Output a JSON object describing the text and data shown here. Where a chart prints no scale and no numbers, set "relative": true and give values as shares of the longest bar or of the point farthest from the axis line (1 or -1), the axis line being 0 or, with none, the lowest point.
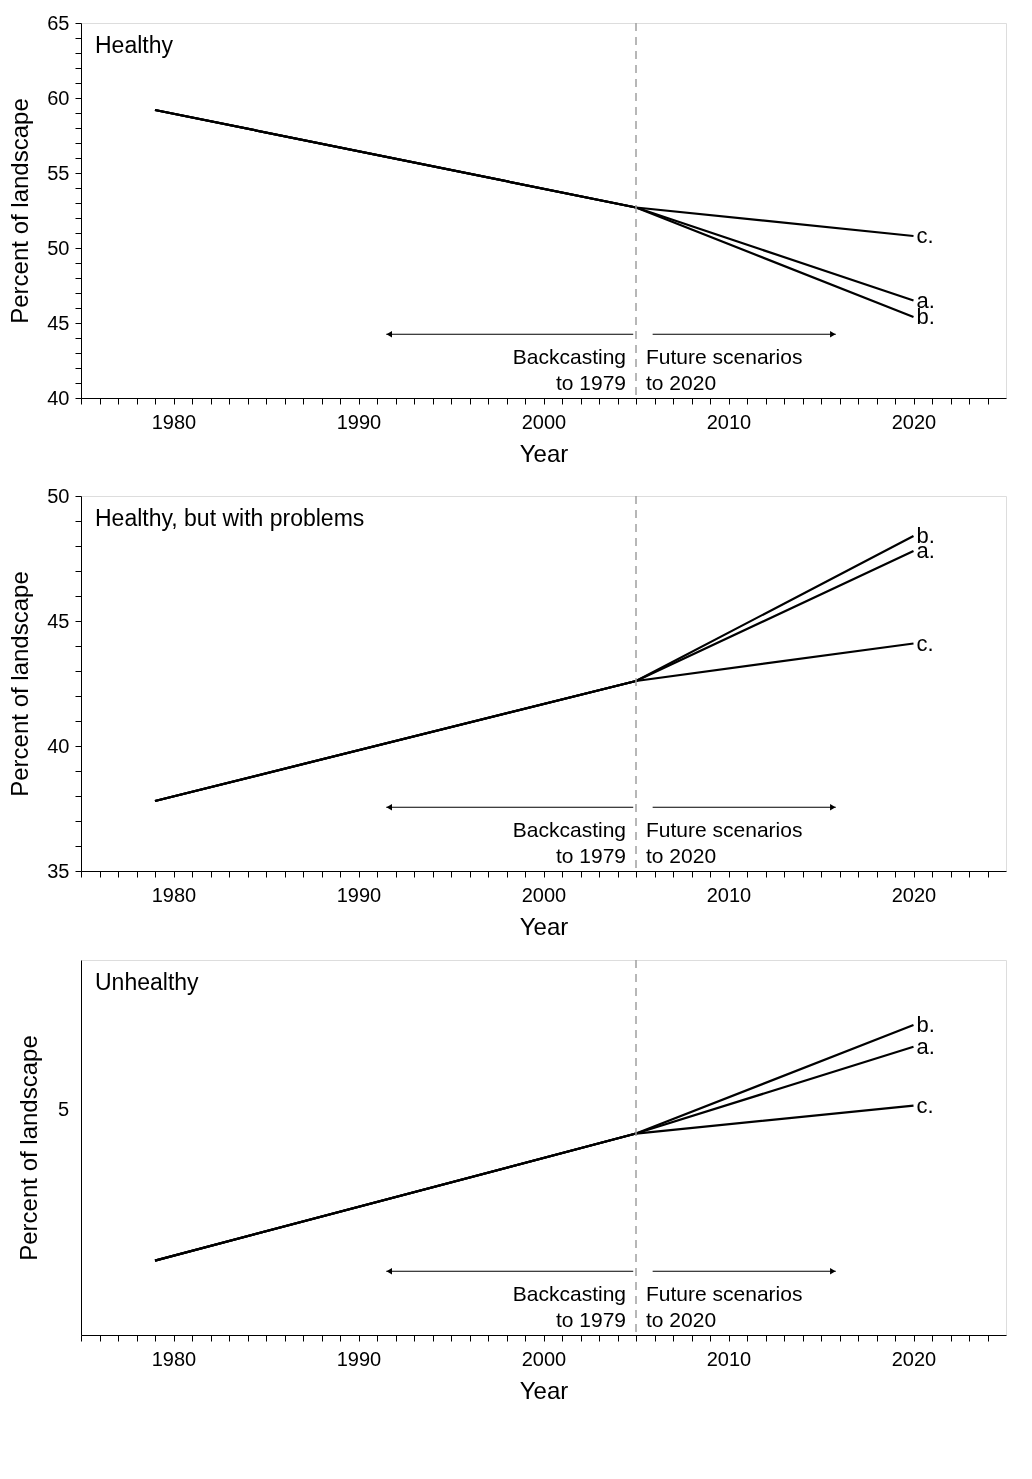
{
  "chart_data": [
    {
      "type": "line",
      "title": "Healthy",
      "xlabel": "Year",
      "ylabel": "Percent of landscape",
      "series": [
        {
          "name": "c.",
          "color": "#000000",
          "x": [
            1979,
            2005,
            2020
          ],
          "values": [
            59.2,
            52.7,
            50.8
          ]
        },
        {
          "name": "a.",
          "color": "#000000",
          "x": [
            1979,
            2005,
            2020
          ],
          "values": [
            59.2,
            52.7,
            46.5
          ]
        },
        {
          "name": "b.",
          "color": "#000000",
          "x": [
            1979,
            2005,
            2020
          ],
          "values": [
            59.2,
            52.7,
            45.4
          ]
        }
      ],
      "xlim": [
        1975,
        2025
      ],
      "ylim": [
        40,
        65
      ],
      "xticks": [
        {
          "value": 1975,
          "label": null
        },
        {
          "value": 1976,
          "label": null
        },
        {
          "value": 1977,
          "label": null
        },
        {
          "value": 1978,
          "label": null
        },
        {
          "value": 1979,
          "label": null
        },
        1980,
        {
          "value": 1981,
          "label": null
        },
        {
          "value": 1982,
          "label": null
        },
        {
          "value": 1983,
          "label": null
        },
        {
          "value": 1984,
          "label": null
        },
        {
          "value": 1985,
          "label": null
        },
        {
          "value": 1986,
          "label": null
        },
        {
          "value": 1987,
          "label": null
        },
        {
          "value": 1988,
          "label": null
        },
        {
          "value": 1989,
          "label": null
        },
        1990,
        {
          "value": 1991,
          "label": null
        },
        {
          "value": 1992,
          "label": null
        },
        {
          "value": 1993,
          "label": null
        },
        {
          "value": 1994,
          "label": null
        },
        {
          "value": 1995,
          "label": null
        },
        {
          "value": 1996,
          "label": null
        },
        {
          "value": 1997,
          "label": null
        },
        {
          "value": 1998,
          "label": null
        },
        {
          "value": 1999,
          "label": null
        },
        2000,
        {
          "value": 2001,
          "label": null
        },
        {
          "value": 2002,
          "label": null
        },
        {
          "value": 2003,
          "label": null
        },
        {
          "value": 2004,
          "label": null
        },
        {
          "value": 2005,
          "label": null
        },
        {
          "value": 2006,
          "label": null
        },
        {
          "value": 2007,
          "label": null
        },
        {
          "value": 2008,
          "label": null
        },
        {
          "value": 2009,
          "label": null
        },
        2010,
        {
          "value": 2011,
          "label": null
        },
        {
          "value": 2012,
          "label": null
        },
        {
          "value": 2013,
          "label": null
        },
        {
          "value": 2014,
          "label": null
        },
        {
          "value": 2015,
          "label": null
        },
        {
          "value": 2016,
          "label": null
        },
        {
          "value": 2017,
          "label": null
        },
        {
          "value": 2018,
          "label": null
        },
        {
          "value": 2019,
          "label": null
        },
        2020,
        {
          "value": 2021,
          "label": null
        },
        {
          "value": 2022,
          "label": null
        },
        {
          "value": 2023,
          "label": null
        },
        {
          "value": 2024,
          "label": null
        }
      ],
      "yticks": [
        40,
        {
          "value": 41,
          "label": null
        },
        {
          "value": 42,
          "label": null
        },
        {
          "value": 43,
          "label": null
        },
        {
          "value": 44,
          "label": null
        },
        45,
        {
          "value": 46,
          "label": null
        },
        {
          "value": 47,
          "label": null
        },
        {
          "value": 48,
          "label": null
        },
        {
          "value": 49,
          "label": null
        },
        50,
        {
          "value": 51,
          "label": null
        },
        {
          "value": 52,
          "label": null
        },
        {
          "value": 53,
          "label": null
        },
        {
          "value": 54,
          "label": null
        },
        55,
        {
          "value": 56,
          "label": null
        },
        {
          "value": 57,
          "label": null
        },
        {
          "value": 58,
          "label": null
        },
        {
          "value": 59,
          "label": null
        },
        60,
        {
          "value": 61,
          "label": null
        },
        {
          "value": 62,
          "label": null
        },
        {
          "value": 63,
          "label": null
        },
        {
          "value": 64,
          "label": null
        },
        65
      ],
      "ref_lines": [
        {
          "axis": "x",
          "value": 2005,
          "color": "#a0a0a0",
          "line_style": "dashed"
        }
      ],
      "annotations": [
        "Backcasting\nto 1979",
        "Future scenarios\nto 2020"
      ],
      "grid": false,
      "legend": false,
      "marker": "none",
      "line_style": "solid"
    },
    {
      "type": "line",
      "title": "Healthy, but with problems",
      "xlabel": "Year",
      "ylabel": "Percent of landscape",
      "series": [
        {
          "name": "b.",
          "color": "#000000",
          "x": [
            1979,
            2005,
            2020
          ],
          "values": [
            37.8,
            42.6,
            48.4
          ]
        },
        {
          "name": "a.",
          "color": "#000000",
          "x": [
            1979,
            2005,
            2020
          ],
          "values": [
            37.8,
            42.6,
            47.8
          ]
        },
        {
          "name": "c.",
          "color": "#000000",
          "x": [
            1979,
            2005,
            2020
          ],
          "values": [
            37.8,
            42.6,
            44.1
          ]
        }
      ],
      "xlim": [
        1975,
        2025
      ],
      "ylim": [
        35,
        50
      ],
      "xticks": [
        {
          "value": 1975,
          "label": null
        },
        {
          "value": 1976,
          "label": null
        },
        {
          "value": 1977,
          "label": null
        },
        {
          "value": 1978,
          "label": null
        },
        {
          "value": 1979,
          "label": null
        },
        1980,
        {
          "value": 1981,
          "label": null
        },
        {
          "value": 1982,
          "label": null
        },
        {
          "value": 1983,
          "label": null
        },
        {
          "value": 1984,
          "label": null
        },
        {
          "value": 1985,
          "label": null
        },
        {
          "value": 1986,
          "label": null
        },
        {
          "value": 1987,
          "label": null
        },
        {
          "value": 1988,
          "label": null
        },
        {
          "value": 1989,
          "label": null
        },
        1990,
        {
          "value": 1991,
          "label": null
        },
        {
          "value": 1992,
          "label": null
        },
        {
          "value": 1993,
          "label": null
        },
        {
          "value": 1994,
          "label": null
        },
        {
          "value": 1995,
          "label": null
        },
        {
          "value": 1996,
          "label": null
        },
        {
          "value": 1997,
          "label": null
        },
        {
          "value": 1998,
          "label": null
        },
        {
          "value": 1999,
          "label": null
        },
        2000,
        {
          "value": 2001,
          "label": null
        },
        {
          "value": 2002,
          "label": null
        },
        {
          "value": 2003,
          "label": null
        },
        {
          "value": 2004,
          "label": null
        },
        {
          "value": 2005,
          "label": null
        },
        {
          "value": 2006,
          "label": null
        },
        {
          "value": 2007,
          "label": null
        },
        {
          "value": 2008,
          "label": null
        },
        {
          "value": 2009,
          "label": null
        },
        2010,
        {
          "value": 2011,
          "label": null
        },
        {
          "value": 2012,
          "label": null
        },
        {
          "value": 2013,
          "label": null
        },
        {
          "value": 2014,
          "label": null
        },
        {
          "value": 2015,
          "label": null
        },
        {
          "value": 2016,
          "label": null
        },
        {
          "value": 2017,
          "label": null
        },
        {
          "value": 2018,
          "label": null
        },
        {
          "value": 2019,
          "label": null
        },
        2020,
        {
          "value": 2021,
          "label": null
        },
        {
          "value": 2022,
          "label": null
        },
        {
          "value": 2023,
          "label": null
        },
        {
          "value": 2024,
          "label": null
        }
      ],
      "yticks": [
        35,
        {
          "value": 36,
          "label": null
        },
        {
          "value": 37,
          "label": null
        },
        {
          "value": 38,
          "label": null
        },
        {
          "value": 39,
          "label": null
        },
        40,
        {
          "value": 41,
          "label": null
        },
        {
          "value": 42,
          "label": null
        },
        {
          "value": 43,
          "label": null
        },
        {
          "value": 44,
          "label": null
        },
        45,
        {
          "value": 46,
          "label": null
        },
        {
          "value": 47,
          "label": null
        },
        {
          "value": 48,
          "label": null
        },
        {
          "value": 49,
          "label": null
        },
        50
      ],
      "ref_lines": [
        {
          "axis": "x",
          "value": 2005,
          "color": "#a0a0a0",
          "line_style": "dashed"
        }
      ],
      "annotations": [
        "Backcasting\nto 1979",
        "Future scenarios\nto 2020"
      ],
      "grid": false,
      "legend": false,
      "marker": "none",
      "line_style": "solid"
    },
    {
      "type": "line",
      "title": "Unhealthy",
      "xlabel": "Year",
      "ylabel": "Percent of landscape",
      "series": [
        {
          "name": "b.",
          "color": "#000000",
          "x": [
            1979,
            2005,
            2020
          ],
          "values": [
            0.24,
            0.65,
            1
          ]
        },
        {
          "name": "a.",
          "color": "#000000",
          "x": [
            1979,
            2005,
            2020
          ],
          "values": [
            0.24,
            0.65,
            0.93
          ]
        },
        {
          "name": "c.",
          "color": "#000000",
          "x": [
            1979,
            2005,
            2020
          ],
          "values": [
            0.24,
            0.65,
            0.74
          ]
        }
      ],
      "relative": true,
      "xlim": [
        1975,
        2025
      ],
      "xticks": [
        {
          "value": 1975,
          "label": null
        },
        {
          "value": 1976,
          "label": null
        },
        {
          "value": 1977,
          "label": null
        },
        {
          "value": 1978,
          "label": null
        },
        {
          "value": 1979,
          "label": null
        },
        1980,
        {
          "value": 1981,
          "label": null
        },
        {
          "value": 1982,
          "label": null
        },
        {
          "value": 1983,
          "label": null
        },
        {
          "value": 1984,
          "label": null
        },
        {
          "value": 1985,
          "label": null
        },
        {
          "value": 1986,
          "label": null
        },
        {
          "value": 1987,
          "label": null
        },
        {
          "value": 1988,
          "label": null
        },
        {
          "value": 1989,
          "label": null
        },
        1990,
        {
          "value": 1991,
          "label": null
        },
        {
          "value": 1992,
          "label": null
        },
        {
          "value": 1993,
          "label": null
        },
        {
          "value": 1994,
          "label": null
        },
        {
          "value": 1995,
          "label": null
        },
        {
          "value": 1996,
          "label": null
        },
        {
          "value": 1997,
          "label": null
        },
        {
          "value": 1998,
          "label": null
        },
        {
          "value": 1999,
          "label": null
        },
        2000,
        {
          "value": 2001,
          "label": null
        },
        {
          "value": 2002,
          "label": null
        },
        {
          "value": 2003,
          "label": null
        },
        {
          "value": 2004,
          "label": null
        },
        {
          "value": 2005,
          "label": null
        },
        {
          "value": 2006,
          "label": null
        },
        {
          "value": 2007,
          "label": null
        },
        {
          "value": 2008,
          "label": null
        },
        {
          "value": 2009,
          "label": null
        },
        2010,
        {
          "value": 2011,
          "label": null
        },
        {
          "value": 2012,
          "label": null
        },
        {
          "value": 2013,
          "label": null
        },
        {
          "value": 2014,
          "label": null
        },
        {
          "value": 2015,
          "label": null
        },
        {
          "value": 2016,
          "label": null
        },
        {
          "value": 2017,
          "label": null
        },
        {
          "value": 2018,
          "label": null
        },
        {
          "value": 2019,
          "label": null
        },
        2020,
        {
          "value": 2021,
          "label": null
        },
        {
          "value": 2022,
          "label": null
        },
        {
          "value": 2023,
          "label": null
        },
        {
          "value": 2024,
          "label": null
        }
      ],
      "ref_lines": [
        {
          "axis": "x",
          "value": 2005,
          "color": "#a0a0a0",
          "line_style": "dashed"
        }
      ],
      "annotations": [
        "Backcasting\nto 1979",
        "Future scenarios\nto 2020",
        "5"
      ],
      "grid": false,
      "legend": false,
      "marker": "none",
      "line_style": "solid"
    }
  ]
}
